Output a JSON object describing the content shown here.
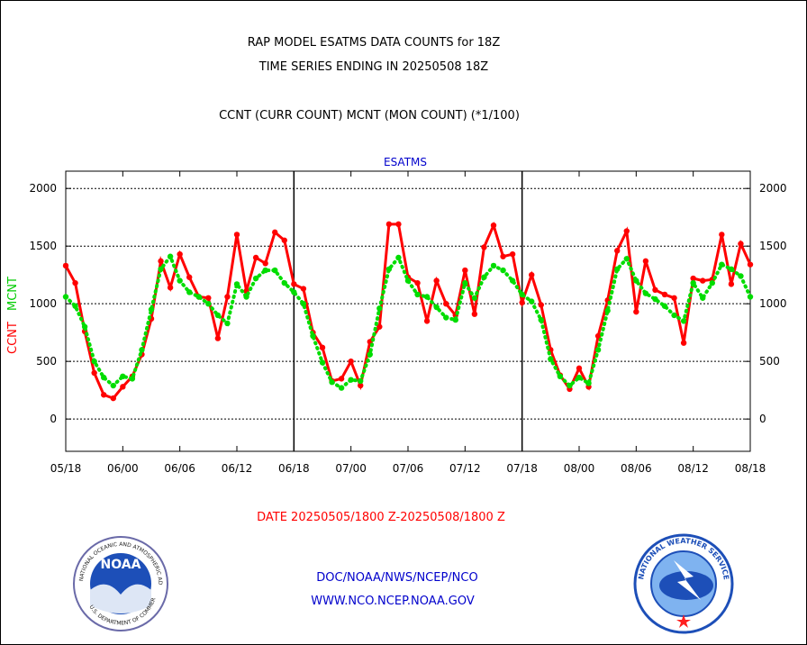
{
  "header": {
    "title_line1": "RAP MODEL ESATMS DATA COUNTS for 18Z",
    "title_line2": "TIME SERIES ENDING IN 20250508 18Z",
    "subtitle": "CCNT (CURR COUNT) MCNT (MON COUNT) (*1/100)"
  },
  "footer": {
    "date_range": "DATE 20250505/1800 Z-20250508/1800 Z",
    "org_line": "DOC/NOAA/NWS/NCEP/NCO",
    "url_line": "WWW.NCO.NCEP.NOAA.GOV"
  },
  "logos": {
    "noaa_text": "NOAA",
    "noaa_ring": "NATIONAL OCEANIC AND ATMOSPHERIC ADMINISTRATION",
    "noaa_ring_bottom": "U.S. DEPARTMENT OF COMMERCE",
    "nws_ring": "NATIONAL WEATHER SERVICE"
  },
  "chart_data": {
    "type": "line",
    "title": "ESATMS",
    "ylabel_left": [
      "CCNT",
      "MCNT"
    ],
    "ylim": [
      -280,
      2150
    ],
    "yticks": [
      0,
      500,
      1000,
      1500,
      2000
    ],
    "ytick_labels": [
      "0",
      "500",
      "1000",
      "1500",
      "2000"
    ],
    "xlim": [
      0,
      72
    ],
    "xticks": [
      0,
      6,
      12,
      18,
      24,
      30,
      36,
      42,
      48,
      54,
      60,
      66,
      72
    ],
    "xtick_labels": [
      "05/18",
      "06/00",
      "06/06",
      "06/12",
      "06/18",
      "07/00",
      "07/06",
      "07/12",
      "07/18",
      "08/00",
      "08/06",
      "08/12",
      "08/18"
    ],
    "day_separators": [
      24,
      48
    ],
    "grid": true,
    "x_hours": [
      0,
      1,
      2,
      3,
      4,
      5,
      6,
      7,
      8,
      9,
      10,
      11,
      12,
      13,
      14,
      15,
      16,
      17,
      18,
      19,
      20,
      21,
      22,
      23,
      24,
      25,
      26,
      27,
      28,
      29,
      30,
      31,
      32,
      33,
      34,
      35,
      36,
      37,
      38,
      39,
      40,
      41,
      42,
      43,
      44,
      45,
      46,
      47,
      48,
      49,
      50,
      51,
      52,
      53,
      54,
      55,
      56,
      57,
      58,
      59,
      60,
      61,
      62,
      63,
      64,
      65,
      66,
      67,
      68,
      69,
      70,
      71,
      72
    ],
    "series": [
      {
        "name": "CCNT",
        "color": "#ff0000",
        "values": [
          1330,
          1180,
          760,
          400,
          210,
          180,
          280,
          370,
          560,
          870,
          1370,
          1140,
          1430,
          1230,
          1060,
          1050,
          700,
          1060,
          1600,
          1110,
          1400,
          1350,
          1620,
          1550,
          1170,
          1130,
          750,
          620,
          330,
          350,
          500,
          290,
          670,
          800,
          1690,
          1690,
          1230,
          1180,
          850,
          1200,
          1000,
          900,
          1290,
          910,
          1490,
          1680,
          1410,
          1430,
          1010,
          1250,
          990,
          600,
          380,
          260,
          440,
          280,
          720,
          1030,
          1460,
          1630,
          930,
          1370,
          1120,
          1080,
          1050,
          660,
          1220,
          1200,
          1210,
          1600,
          1170,
          1520,
          1340
        ]
      },
      {
        "name": "MCNT",
        "color": "#00dd00",
        "values": [
          1060,
          980,
          800,
          500,
          360,
          290,
          370,
          350,
          600,
          950,
          1300,
          1410,
          1200,
          1100,
          1060,
          1000,
          900,
          830,
          1170,
          1060,
          1220,
          1290,
          1290,
          1180,
          1100,
          1000,
          720,
          490,
          320,
          270,
          340,
          330,
          560,
          960,
          1300,
          1400,
          1200,
          1080,
          1060,
          970,
          880,
          860,
          1180,
          1050,
          1230,
          1330,
          1290,
          1200,
          1080,
          1020,
          860,
          520,
          370,
          290,
          360,
          310,
          600,
          940,
          1300,
          1390,
          1200,
          1090,
          1040,
          980,
          900,
          850,
          1180,
          1050,
          1180,
          1340,
          1300,
          1240,
          1060
        ]
      }
    ]
  }
}
